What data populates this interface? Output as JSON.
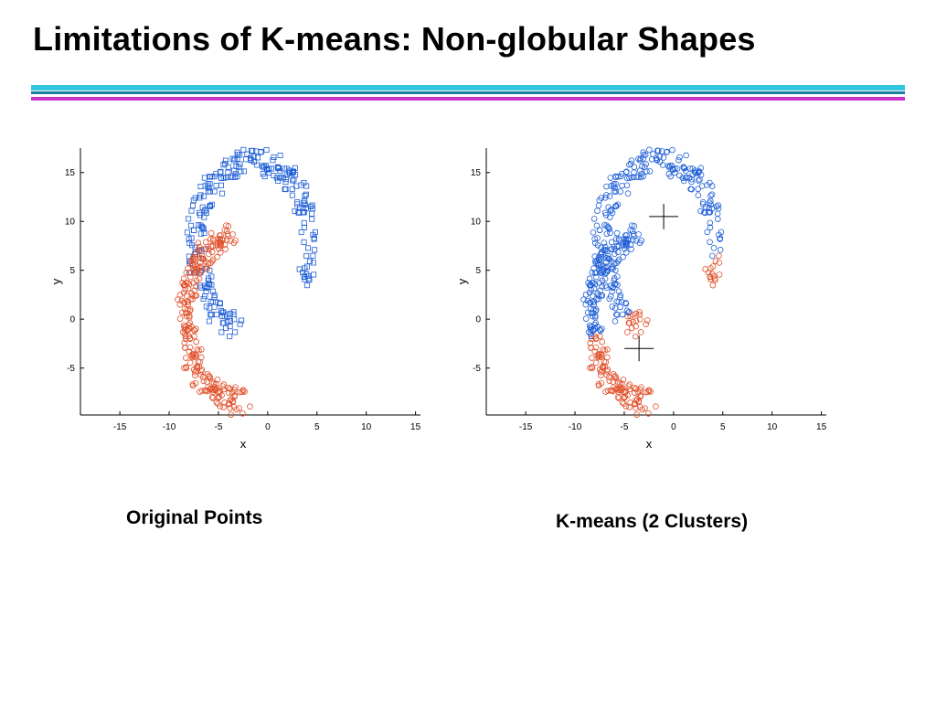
{
  "slide": {
    "title": "Limitations of K-means: Non-globular Shapes",
    "captions": [
      "Original Points",
      "K-means (2 Clusters)"
    ]
  },
  "colors": {
    "cluster_blue": "#1f5fd6",
    "cluster_red": "#e0502a",
    "rule_cyan": "#33c6e0",
    "rule_teal": "#1a7f9c",
    "rule_magenta": "#cc33cc"
  },
  "chart_data": [
    {
      "type": "scatter",
      "title": "",
      "xlabel": "x",
      "ylabel": "y",
      "xlim": [
        -19,
        15.5
      ],
      "ylim": [
        -9.8,
        17.5
      ],
      "xticks": [
        -15,
        -10,
        -5,
        0,
        5,
        10,
        15
      ],
      "yticks": [
        -5,
        0,
        5,
        10,
        15
      ],
      "grid": false,
      "legend": "none",
      "series": [
        {
          "marker": "square",
          "color": "#1f5fd6",
          "values_note_shape": "upper arc from (-4,17) sweeping right to (5,8) and down to (-2,-2)",
          "arc": {
            "cx": -1.5,
            "cy": 7.5,
            "rx": 5.8,
            "ry": 8.8,
            "a_start": -25,
            "a_end": 255,
            "spread": 1.3,
            "count": 260
          }
        },
        {
          "marker": "circle",
          "color": "#e0502a",
          "arc": {
            "cx": -3.5,
            "cy": 0.0,
            "rx": 4.8,
            "ry": 8.4,
            "a_start": 90,
            "a_end": 285,
            "spread": 1.3,
            "count": 260
          }
        }
      ]
    },
    {
      "type": "scatter",
      "title": "",
      "xlabel": "x",
      "ylabel": "y",
      "xlim": [
        -19,
        15.5
      ],
      "ylim": [
        -9.8,
        17.5
      ],
      "xticks": [
        -15,
        -10,
        -5,
        0,
        5,
        10,
        15
      ],
      "yticks": [
        -5,
        0,
        5,
        10,
        15
      ],
      "grid": false,
      "legend": "none",
      "kmeans_boundary": {
        "a": -0.55,
        "b": 0.83,
        "c": -3.0
      },
      "centroids": [
        [
          -1,
          10.5
        ],
        [
          -3.5,
          -3
        ]
      ],
      "series": [
        {
          "marker": "circle",
          "color": "#1f5fd6",
          "cluster": "upper"
        },
        {
          "marker": "circle",
          "color": "#e0502a",
          "cluster": "lower"
        }
      ]
    }
  ]
}
